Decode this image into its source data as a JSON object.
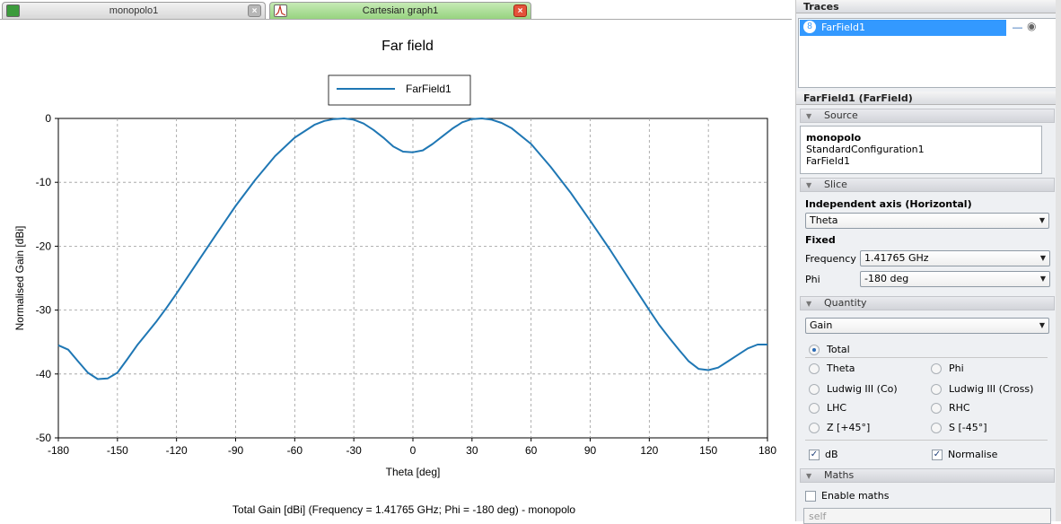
{
  "tabs": [
    {
      "label": "monopolo1",
      "icon": "3d-model-icon",
      "active": false
    },
    {
      "label": "Cartesian graph1",
      "icon": "cartesian-graph-icon",
      "active": true
    }
  ],
  "graph": {
    "title": "Far field",
    "caption": "Total Gain [dBi] (Frequency = 1.41765 GHz; Phi = -180 deg) - monopolo"
  },
  "chart_data": {
    "type": "line",
    "title": "Far field",
    "xlabel": "Theta [deg]",
    "ylabel": "Normalised Gain [dBi]",
    "xlim": [
      -180,
      180
    ],
    "ylim": [
      -50,
      0
    ],
    "xticks": [
      -180,
      -150,
      -120,
      -90,
      -60,
      -30,
      0,
      30,
      60,
      90,
      120,
      150,
      180
    ],
    "yticks": [
      0,
      -10,
      -20,
      -30,
      -40,
      -50
    ],
    "grid": true,
    "legend_position": "top-center",
    "series": [
      {
        "name": "FarField1",
        "color": "#1f77b4",
        "x": [
          -180,
          -175,
          -170,
          -165,
          -160,
          -155,
          -150,
          -145,
          -140,
          -135,
          -130,
          -125,
          -120,
          -110,
          -100,
          -90,
          -80,
          -70,
          -60,
          -50,
          -45,
          -40,
          -35,
          -30,
          -25,
          -20,
          -15,
          -10,
          -5,
          0,
          5,
          10,
          15,
          20,
          25,
          30,
          35,
          40,
          45,
          50,
          60,
          70,
          80,
          90,
          100,
          110,
          120,
          125,
          130,
          135,
          140,
          145,
          150,
          155,
          160,
          165,
          170,
          175,
          180
        ],
        "y": [
          -35.5,
          -36.2,
          -38.0,
          -39.8,
          -40.8,
          -40.7,
          -39.8,
          -37.7,
          -35.5,
          -33.6,
          -31.7,
          -29.6,
          -27.4,
          -22.8,
          -18.2,
          -13.7,
          -9.6,
          -5.9,
          -3.0,
          -1.0,
          -0.4,
          -0.1,
          0.0,
          -0.2,
          -0.8,
          -1.8,
          -3.0,
          -4.4,
          -5.2,
          -5.3,
          -5.0,
          -4.0,
          -2.8,
          -1.6,
          -0.6,
          -0.1,
          0.0,
          -0.2,
          -0.7,
          -1.5,
          -4.0,
          -7.6,
          -11.6,
          -16.0,
          -20.5,
          -25.3,
          -30.0,
          -32.3,
          -34.3,
          -36.2,
          -38.0,
          -39.2,
          -39.4,
          -39.0,
          -38.0,
          -37.0,
          -36.0,
          -35.4,
          -35.4
        ]
      }
    ]
  },
  "panel": {
    "traces_title": "Traces",
    "traces": [
      {
        "label": "FarField1"
      }
    ],
    "trace_header": "FarField1 (FarField)",
    "source_section": "Source",
    "source": {
      "name": "monopolo",
      "config": "StandardConfiguration1",
      "item": "FarField1"
    },
    "slice_section": "Slice",
    "independent_axis_label": "Independent axis (Horizontal)",
    "independent_axis_value": "Theta",
    "fixed_label": "Fixed",
    "frequency_label": "Frequency",
    "frequency_value": "1.41765 GHz",
    "phi_label": "Phi",
    "phi_value": "-180 deg",
    "quantity_section": "Quantity",
    "quantity_value": "Gain",
    "components": [
      {
        "label": "Total",
        "selected": true
      },
      {
        "label": "Theta",
        "selected": false
      },
      {
        "label": "Phi",
        "selected": false
      },
      {
        "label": "Ludwig III (Co)",
        "selected": false
      },
      {
        "label": "Ludwig III (Cross)",
        "selected": false
      },
      {
        "label": "LHC",
        "selected": false
      },
      {
        "label": "RHC",
        "selected": false
      },
      {
        "label": "Z [+45°]",
        "selected": false
      },
      {
        "label": "S [-45°]",
        "selected": false
      }
    ],
    "db_label": "dB",
    "db_checked": true,
    "normalise_label": "Normalise",
    "normalise_checked": true,
    "maths_section": "Maths",
    "enable_maths_label": "Enable maths",
    "enable_maths_checked": false,
    "maths_expression": "self"
  }
}
